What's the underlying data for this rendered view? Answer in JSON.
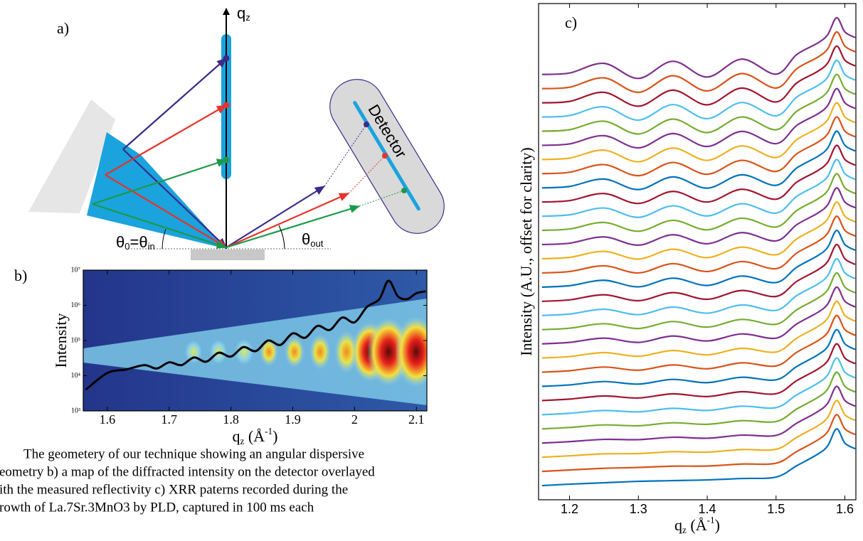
{
  "diagram": {
    "label": "a)",
    "axis_label": {
      "text": "q",
      "sub": "z"
    },
    "detector": "Detector",
    "theta_in": {
      "text": "θ",
      "sub": "0",
      "mid": "=θ",
      "sub2": "in"
    },
    "theta_out": {
      "text": "θ",
      "sub": "out"
    }
  },
  "chart_data": [
    {
      "type": "line",
      "panel_label": "b)",
      "ylabel": "Intensity",
      "xlabel": {
        "text": "q",
        "sub": "z",
        "unit": " (Å",
        "sup": "-1",
        "close": ")"
      },
      "log_y": true,
      "color": "#000000",
      "x": [
        1.565,
        1.6,
        1.63,
        1.66,
        1.68,
        1.7,
        1.72,
        1.74,
        1.76,
        1.78,
        1.8,
        1.82,
        1.84,
        1.86,
        1.88,
        1.9,
        1.92,
        1.94,
        1.96,
        1.98,
        2.0,
        2.02,
        2.04,
        2.055,
        2.07,
        2.085,
        2.1,
        2.115
      ],
      "values": [
        4000,
        12000,
        15000,
        20000,
        16000,
        24000,
        20000,
        33000,
        25000,
        45000,
        35000,
        65000,
        50000,
        100000,
        75000,
        160000,
        120000,
        260000,
        200000,
        450000,
        330000,
        900000,
        1500000,
        5000000,
        1800000,
        1500000,
        2200000,
        2500000
      ],
      "xlim": [
        1.561,
        2.117
      ],
      "xticks": [
        1.6,
        1.7,
        1.8,
        1.9,
        2,
        2.1
      ],
      "ylim": [
        1000,
        10000000
      ],
      "yticks": [
        {
          "value": 1000,
          "label": "10³"
        },
        {
          "value": 10000,
          "label": "10⁴"
        },
        {
          "value": 100000,
          "label": "10⁵"
        },
        {
          "value": 1000000,
          "label": "10⁶"
        },
        {
          "value": 10000000,
          "label": "10⁷"
        }
      ]
    },
    {
      "type": "line",
      "panel_label": "c)",
      "ylabel": "Intensity (A.U., offset for clarity)",
      "xlabel": {
        "text": "q",
        "sub": "z",
        "unit": " (Å",
        "sup": "-1",
        "close": ")"
      },
      "x": [
        1.16,
        1.2,
        1.25,
        1.3,
        1.35,
        1.4,
        1.45,
        1.5,
        1.53,
        1.56,
        1.575,
        1.588,
        1.6,
        1.615
      ],
      "xlim": [
        1.155,
        1.616
      ],
      "xticks": [
        1.2,
        1.3,
        1.4,
        1.5,
        1.6
      ],
      "ylim": [
        0,
        35
      ],
      "series": [
        {
          "color": "#0072BD",
          "values": [
            1,
            1.1,
            1.2,
            1.3,
            1.35,
            1.4,
            1.5,
            1.6,
            2.4,
            3.2,
            3.8,
            5,
            4,
            3.6
          ]
        },
        {
          "color": "#D95319",
          "values": [
            2,
            2.1,
            2.22,
            2.28,
            2.37,
            2.38,
            2.52,
            2.58,
            3.4,
            4.2,
            4.8,
            6,
            5,
            4.6
          ]
        },
        {
          "color": "#EDB120",
          "values": [
            3,
            3.1,
            3.24,
            3.26,
            3.39,
            3.36,
            3.54,
            3.56,
            4.4,
            5.2,
            5.8,
            7,
            6,
            5.6
          ]
        },
        {
          "color": "#7E2F8E",
          "values": [
            4,
            4.1,
            4.26,
            4.24,
            4.41,
            4.34,
            4.56,
            4.54,
            5.4,
            6.2,
            6.8,
            8,
            7,
            6.6
          ]
        },
        {
          "color": "#77AC30",
          "values": [
            5,
            5.1,
            5.28,
            5.22,
            5.43,
            5.32,
            5.58,
            5.52,
            6.4,
            7.2,
            7.8,
            9,
            8,
            7.6
          ]
        },
        {
          "color": "#4DBEEE",
          "values": [
            6,
            6.1,
            6.3,
            6.2,
            6.45,
            6.3,
            6.6,
            6.5,
            7.4,
            8.2,
            8.8,
            10,
            9,
            8.6
          ]
        },
        {
          "color": "#A2142F",
          "values": [
            7,
            7.1,
            7.32,
            7.18,
            7.47,
            7.28,
            7.62,
            7.48,
            8.4,
            9.2,
            9.8,
            11,
            10,
            9.6
          ]
        },
        {
          "color": "#0072BD",
          "values": [
            8,
            8.1,
            8.34,
            8.16,
            8.49,
            8.26,
            8.64,
            8.46,
            9.4,
            10.2,
            10.8,
            12,
            11,
            10.6
          ]
        },
        {
          "color": "#D95319",
          "values": [
            9,
            9.1,
            9.36,
            9.14,
            9.51,
            9.24,
            9.66,
            9.44,
            10.4,
            11.2,
            11.8,
            13,
            12,
            11.6
          ]
        },
        {
          "color": "#EDB120",
          "values": [
            10,
            10.1,
            10.38,
            10.12,
            10.53,
            10.22,
            10.68,
            10.42,
            11.4,
            12.2,
            12.8,
            14,
            13,
            12.6
          ]
        },
        {
          "color": "#7E2F8E",
          "values": [
            11,
            11.1,
            11.4,
            11.1,
            11.55,
            11.2,
            11.7,
            11.4,
            12.4,
            13.2,
            13.8,
            15,
            14,
            13.6
          ]
        },
        {
          "color": "#77AC30",
          "values": [
            12,
            12.1,
            12.42,
            12.08,
            12.57,
            12.18,
            12.72,
            12.38,
            13.4,
            14.2,
            14.8,
            16,
            15,
            14.6
          ]
        },
        {
          "color": "#4DBEEE",
          "values": [
            13,
            13.1,
            13.44,
            13.06,
            13.59,
            13.16,
            13.74,
            13.36,
            14.4,
            15.2,
            15.8,
            17,
            16,
            15.6
          ]
        },
        {
          "color": "#A2142F",
          "values": [
            14,
            14.1,
            14.46,
            14.04,
            14.61,
            14.14,
            14.76,
            14.34,
            15.4,
            16.2,
            16.8,
            18,
            17,
            16.6
          ]
        },
        {
          "color": "#0072BD",
          "values": [
            15,
            15.1,
            15.48,
            15.02,
            15.63,
            15.12,
            15.78,
            15.32,
            16.4,
            17.2,
            17.8,
            19,
            18,
            17.6
          ]
        },
        {
          "color": "#D95319",
          "values": [
            16,
            16.1,
            16.5,
            16,
            16.65,
            16.1,
            16.8,
            16.3,
            17.4,
            18.2,
            18.8,
            20,
            19,
            18.6
          ]
        },
        {
          "color": "#EDB120",
          "values": [
            17,
            17.1,
            17.52,
            16.98,
            17.67,
            17.08,
            17.82,
            17.28,
            18.4,
            19.2,
            19.8,
            21,
            20,
            19.6
          ]
        },
        {
          "color": "#7E2F8E",
          "values": [
            18,
            18.1,
            18.54,
            17.96,
            18.69,
            18.06,
            18.84,
            18.26,
            19.4,
            20.2,
            20.8,
            22,
            21,
            20.6
          ]
        },
        {
          "color": "#77AC30",
          "values": [
            19,
            19.1,
            19.56,
            18.94,
            19.71,
            19.04,
            19.86,
            19.24,
            20.4,
            21.2,
            21.8,
            23,
            22,
            21.6
          ]
        },
        {
          "color": "#4DBEEE",
          "values": [
            20,
            20.1,
            20.58,
            19.92,
            20.73,
            20.02,
            20.88,
            20.22,
            21.4,
            22.2,
            22.8,
            24,
            23,
            22.6
          ]
        },
        {
          "color": "#A2142F",
          "values": [
            21,
            21.1,
            21.6,
            20.9,
            21.75,
            21,
            21.9,
            21.2,
            22.4,
            23.2,
            23.8,
            25,
            24,
            23.6
          ]
        },
        {
          "color": "#0072BD",
          "values": [
            22,
            22.1,
            22.62,
            21.88,
            22.77,
            21.98,
            22.92,
            22.18,
            23.4,
            24.2,
            24.8,
            26,
            25,
            24.6
          ]
        },
        {
          "color": "#D95319",
          "values": [
            23,
            23.1,
            23.64,
            22.86,
            23.79,
            22.96,
            23.94,
            23.16,
            24.4,
            25.2,
            25.8,
            27,
            26,
            25.6
          ]
        },
        {
          "color": "#EDB120",
          "values": [
            24,
            24.1,
            24.66,
            23.84,
            24.81,
            23.94,
            24.96,
            24.14,
            25.4,
            26.2,
            26.8,
            28,
            27,
            26.6
          ]
        },
        {
          "color": "#7E2F8E",
          "values": [
            25,
            25.1,
            25.68,
            24.82,
            25.83,
            24.92,
            25.98,
            25.12,
            26.4,
            27.2,
            27.8,
            29,
            28,
            27.6
          ]
        },
        {
          "color": "#77AC30",
          "values": [
            26,
            26.1,
            26.7,
            25.8,
            26.85,
            25.9,
            27,
            26.1,
            27.4,
            28.2,
            28.8,
            30,
            29,
            28.6
          ]
        },
        {
          "color": "#4DBEEE",
          "values": [
            27,
            27.1,
            27.72,
            26.78,
            27.87,
            26.88,
            28.02,
            27.08,
            28.4,
            29.2,
            29.8,
            31,
            30,
            29.6
          ]
        },
        {
          "color": "#A2142F",
          "values": [
            28,
            28.1,
            28.74,
            27.76,
            28.89,
            27.86,
            29.04,
            28.06,
            29.4,
            30.2,
            30.8,
            32,
            31,
            30.6
          ]
        },
        {
          "color": "#D95319",
          "values": [
            29,
            29.1,
            29.76,
            28.74,
            29.91,
            28.84,
            30.06,
            29.04,
            30.4,
            31.2,
            31.8,
            33,
            32,
            31.6
          ]
        },
        {
          "color": "#7E2F8E",
          "values": [
            30,
            30.1,
            30.78,
            29.72,
            30.93,
            29.82,
            31.08,
            30.02,
            31.4,
            32.2,
            32.8,
            34,
            33,
            32.6
          ]
        }
      ]
    }
  ],
  "caption": [
    "The geometery of our technique showing an angular dispersive",
    "eometry  b) a map of the diffracted intensity on the detector overlayed",
    "ith the measured reflectivity  c) XRR paterns recorded during the",
    "rowth of La.7Sr.3MnO3 by PLD, captured in 100 ms each"
  ]
}
